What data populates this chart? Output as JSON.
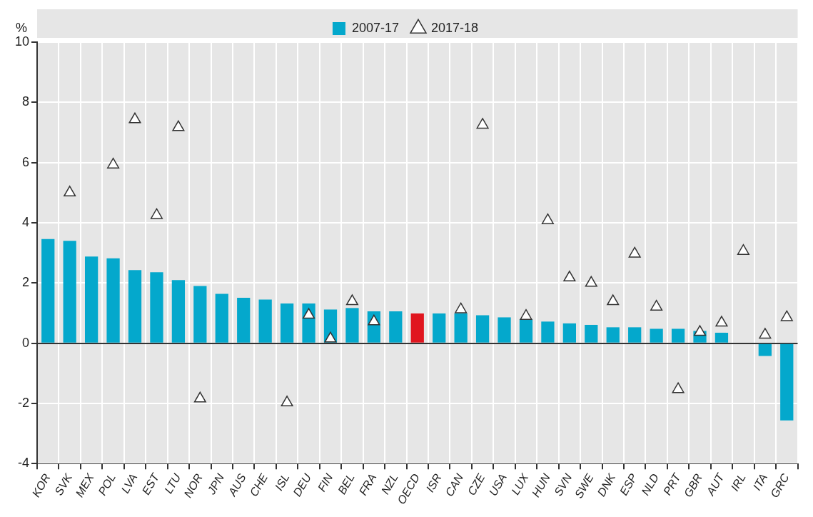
{
  "chart_data": {
    "type": "bar",
    "ylabel": "%",
    "legend": "top",
    "grid": true,
    "marker": "triangle",
    "categories": [
      "KOR",
      "SVK",
      "MEX",
      "POL",
      "LVA",
      "EST",
      "LTU",
      "NOR",
      "JPN",
      "AUS",
      "CHE",
      "ISL",
      "DEU",
      "FIN",
      "BEL",
      "FRA",
      "NZL",
      "OECD",
      "ISR",
      "CAN",
      "CZE",
      "USA",
      "LUX",
      "HUN",
      "SVN",
      "SWE",
      "DNK",
      "ESP",
      "NLD",
      "PRT",
      "GBR",
      "AUT",
      "IRL",
      "ITA",
      "GRC"
    ],
    "ylim": [
      -4,
      10
    ],
    "yticks": [
      -4,
      -2,
      0,
      2,
      4,
      6,
      8,
      10
    ],
    "series": [
      {
        "name": "2007-17",
        "color": "#04a8cc",
        "colors": [
          "#04a8cc",
          "#04a8cc",
          "#04a8cc",
          "#04a8cc",
          "#04a8cc",
          "#04a8cc",
          "#04a8cc",
          "#04a8cc",
          "#04a8cc",
          "#04a8cc",
          "#04a8cc",
          "#04a8cc",
          "#04a8cc",
          "#04a8cc",
          "#04a8cc",
          "#04a8cc",
          "#04a8cc",
          "#e0161f",
          "#04a8cc",
          "#04a8cc",
          "#04a8cc",
          "#04a8cc",
          "#04a8cc",
          "#04a8cc",
          "#04a8cc",
          "#04a8cc",
          "#04a8cc",
          "#04a8cc",
          "#04a8cc",
          "#04a8cc",
          "#04a8cc",
          "#04a8cc",
          "#04a8cc",
          "#04a8cc",
          "#04a8cc"
        ],
        "values": [
          3.46,
          3.4,
          2.88,
          2.82,
          2.43,
          2.36,
          2.1,
          1.9,
          1.64,
          1.51,
          1.45,
          1.32,
          1.32,
          1.12,
          1.17,
          1.06,
          1.06,
          0.99,
          0.99,
          0.99,
          0.93,
          0.86,
          0.8,
          0.72,
          0.66,
          0.61,
          0.53,
          0.53,
          0.48,
          0.48,
          0.41,
          0.35,
          null,
          -0.42,
          -2.56
        ]
      },
      {
        "name": "2017-18",
        "type": "scatter",
        "color": "#ffffff",
        "values": [
          null,
          5.0,
          null,
          5.93,
          7.43,
          4.25,
          7.17,
          -1.84,
          null,
          null,
          null,
          -1.97,
          0.94,
          0.15,
          1.39,
          0.72,
          null,
          null,
          null,
          1.12,
          7.25,
          null,
          0.9,
          4.08,
          2.18,
          2.0,
          1.39,
          2.97,
          1.21,
          -1.53,
          0.37,
          0.68,
          3.06,
          0.28,
          0.86
        ]
      }
    ]
  }
}
